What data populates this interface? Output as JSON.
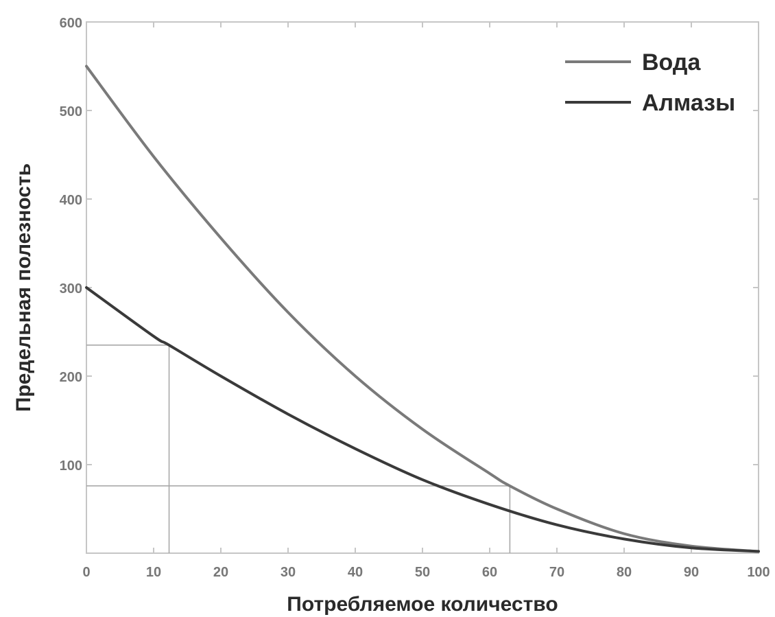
{
  "chart_data": {
    "type": "line",
    "xlabel": "Потребляемое количество",
    "ylabel": "Предельная полезность",
    "xlim": [
      0,
      100
    ],
    "ylim": [
      0,
      600
    ],
    "x_ticks": [
      "0",
      "10",
      "20",
      "30",
      "40",
      "50",
      "60",
      "70",
      "80",
      "90",
      "100"
    ],
    "y_ticks": [
      "100",
      "200",
      "300",
      "400",
      "500",
      "600"
    ],
    "legend_position": "top-right",
    "grid": false,
    "series": [
      {
        "name": "Вода",
        "color": "#7a7a7a",
        "x": [
          0,
          10,
          20,
          30,
          40,
          50,
          60,
          63,
          70,
          80,
          90,
          100
        ],
        "y": [
          550,
          448,
          356,
          272,
          200,
          140,
          90,
          76,
          50,
          22,
          8,
          2
        ]
      },
      {
        "name": "Алмазы",
        "color": "#3a3a3a",
        "x": [
          0,
          10,
          12.3,
          20,
          30,
          40,
          50,
          60,
          70,
          80,
          90,
          100
        ],
        "y": [
          300,
          245,
          235,
          200,
          157,
          118,
          83,
          55,
          32,
          16,
          6,
          2
        ]
      }
    ],
    "reference_lines": [
      {
        "from": [
          0,
          235
        ],
        "to": [
          12.3,
          235
        ]
      },
      {
        "from": [
          12.3,
          0
        ],
        "to": [
          12.3,
          235
        ]
      },
      {
        "from": [
          0,
          76
        ],
        "to": [
          63,
          76
        ]
      },
      {
        "from": [
          63,
          0
        ],
        "to": [
          63,
          76
        ]
      }
    ]
  }
}
